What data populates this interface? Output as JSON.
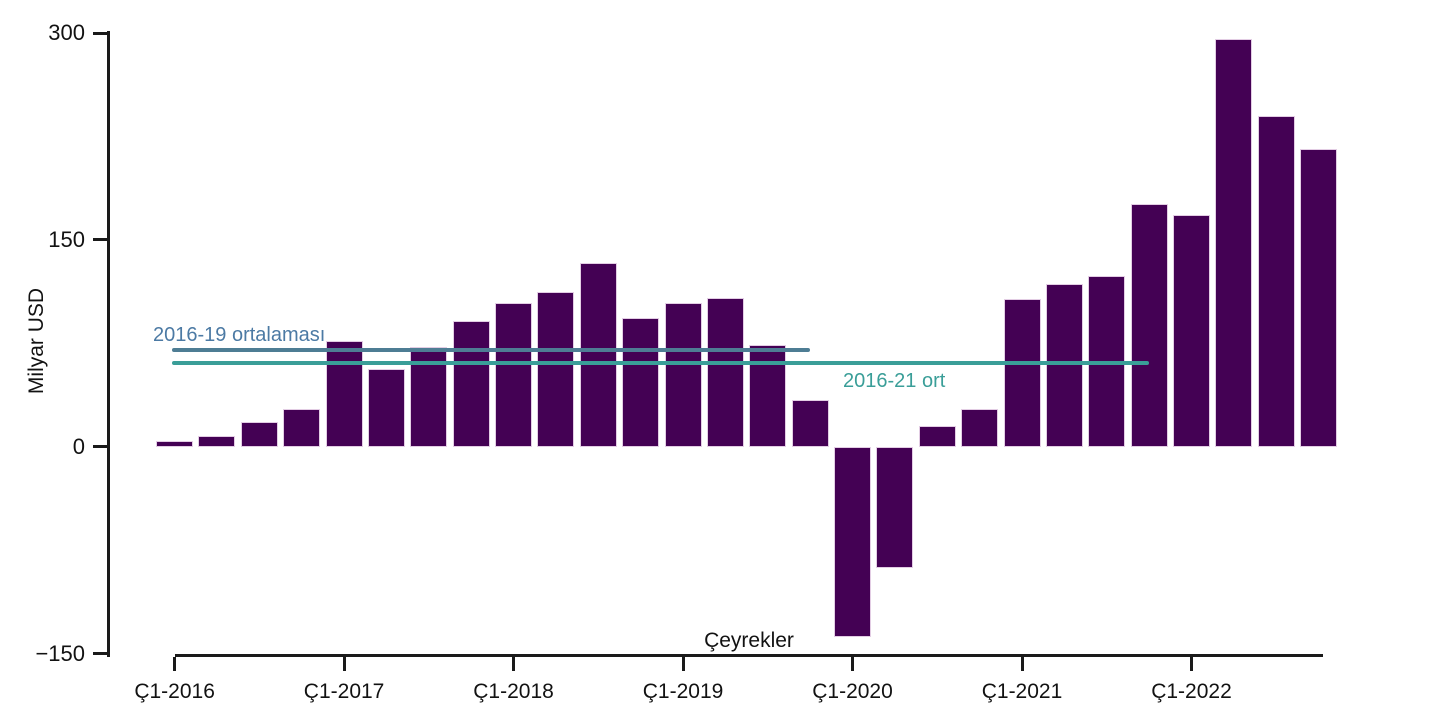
{
  "chart_data": {
    "type": "bar",
    "title": "",
    "ylabel": "Milyar USD",
    "xlabel": "Çeyrekler",
    "unit": "Milyar USD",
    "categories": [
      "Ç1-2016",
      "Ç2-2016",
      "Ç3-2016",
      "Ç4-2016",
      "Ç1-2017",
      "Ç2-2017",
      "Ç3-2017",
      "Ç4-2017",
      "Ç1-2018",
      "Ç2-2018",
      "Ç3-2018",
      "Ç4-2018",
      "Ç1-2019",
      "Ç2-2019",
      "Ç3-2019",
      "Ç4-2019",
      "Ç1-2020",
      "Ç2-2020",
      "Ç3-2020",
      "Ç4-2020",
      "Ç1-2021",
      "Ç2-2021",
      "Ç3-2021",
      "Ç4-2021",
      "Ç1-2022",
      "Ç2-2022",
      "Ç3-2022",
      "Ç4-2022"
    ],
    "values": [
      4,
      8,
      18,
      27,
      77,
      56,
      72,
      91,
      104,
      112,
      133,
      93,
      104,
      108,
      74,
      34,
      -138,
      -88,
      15,
      27,
      107,
      118,
      124,
      176,
      168,
      296,
      240,
      216
    ],
    "bar_color": "#440154",
    "ylim": [
      -150,
      300
    ],
    "yticks": [
      {
        "value": 300,
        "label": "300"
      },
      {
        "value": 150,
        "label": "150"
      },
      {
        "value": 0,
        "label": "0"
      },
      {
        "value": -150,
        "label": "−150"
      }
    ],
    "xticks": [
      {
        "index": 0,
        "label": "Ç1-2016"
      },
      {
        "index": 4,
        "label": "Ç1-2017"
      },
      {
        "index": 8,
        "label": "Ç1-2018"
      },
      {
        "index": 12,
        "label": "Ç1-2019"
      },
      {
        "index": 16,
        "label": "Ç1-2020"
      },
      {
        "index": 20,
        "label": "Ç1-2021"
      },
      {
        "index": 24,
        "label": "Ç1-2022"
      }
    ],
    "reference_lines": [
      {
        "label": "2016-19 ortalaması",
        "value": 70,
        "from_category": "Ç1-2016",
        "to_category": "Ç4-2019",
        "line_color": "#4e7d94",
        "label_color": "#4c7aa4"
      },
      {
        "label": "2016-21 ort",
        "value": 61,
        "from_category": "Ç1-2016",
        "to_category": "Ç4-2021",
        "line_color": "#3a9e98",
        "label_color": "#3a9e98"
      }
    ],
    "grid": false,
    "legend": "none"
  }
}
